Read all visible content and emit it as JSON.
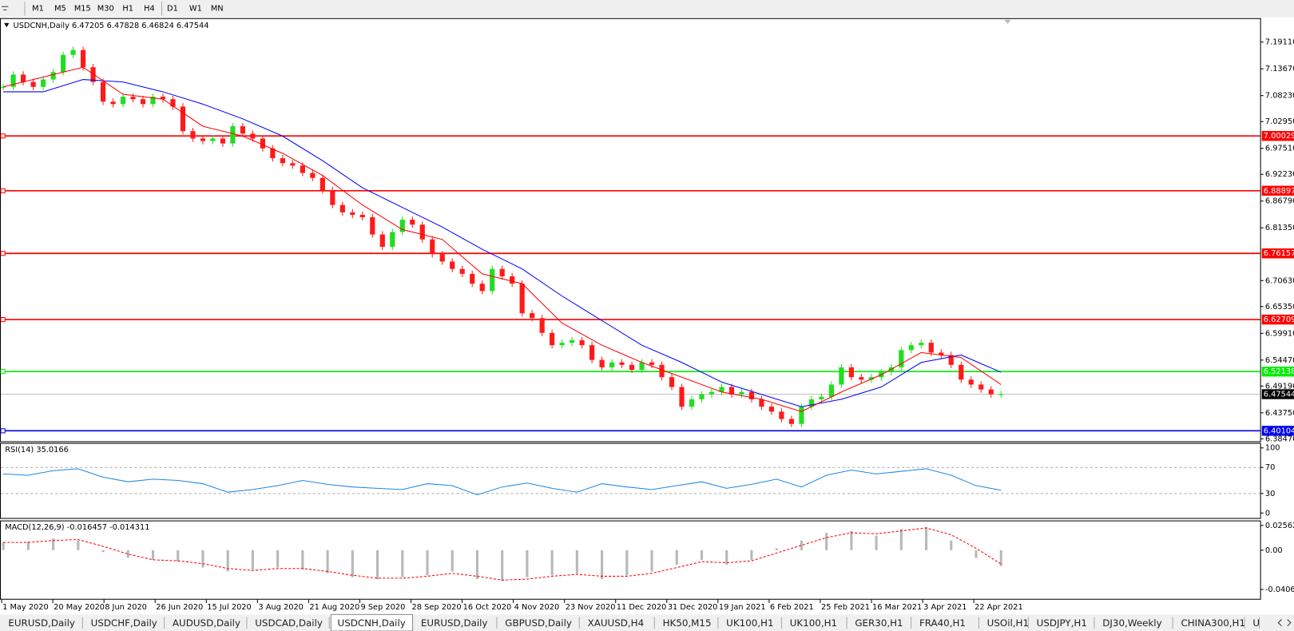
{
  "toolbar": {
    "timeframes": [
      "M1",
      "M5",
      "M15",
      "M30",
      "H1",
      "H4",
      "D1",
      "W1",
      "MN"
    ]
  },
  "chart_data": {
    "type": "candlestick",
    "header": "USDCNH,Daily  6.47205 6.47828 6.46824 6.47544",
    "x_labels": [
      "1 May 2020",
      "20 May 2020",
      "8 Jun 2020",
      "26 Jun 2020",
      "15 Jul 2020",
      "3 Aug 2020",
      "21 Aug 2020",
      "9 Sep 2020",
      "28 Sep 2020",
      "16 Oct 2020",
      "4 Nov 2020",
      "23 Nov 2020",
      "11 Dec 2020",
      "31 Dec 2020",
      "19 Jan 2021",
      "6 Feb 2021",
      "25 Feb 2021",
      "16 Mar 2021",
      "3 Apr 2021",
      "22 Apr 2021"
    ],
    "close": [
      7.1,
      7.125,
      7.11,
      7.1,
      7.115,
      7.13,
      7.165,
      7.175,
      7.14,
      7.11,
      7.07,
      7.065,
      7.08,
      7.075,
      7.065,
      7.08,
      7.075,
      7.06,
      7.01,
      6.995,
      6.99,
      6.995,
      6.985,
      7.02,
      7.005,
      6.995,
      6.975,
      6.955,
      6.945,
      6.94,
      6.925,
      6.915,
      6.89,
      6.86,
      6.845,
      6.84,
      6.835,
      6.8,
      6.775,
      6.805,
      6.83,
      6.82,
      6.79,
      6.76,
      6.745,
      6.73,
      6.72,
      6.7,
      6.685,
      6.73,
      6.715,
      6.7,
      6.64,
      6.63,
      6.6,
      6.575,
      6.58,
      6.585,
      6.575,
      6.545,
      6.53,
      6.54,
      6.535,
      6.525,
      6.54,
      6.535,
      6.51,
      6.49,
      6.45,
      6.465,
      6.475,
      6.48,
      6.49,
      6.475,
      6.48,
      6.465,
      6.45,
      6.44,
      6.425,
      6.415,
      6.45,
      6.465,
      6.47,
      6.495,
      6.53,
      6.51,
      6.505,
      6.51,
      6.52,
      6.53,
      6.565,
      6.575,
      6.58,
      6.56,
      6.555,
      6.535,
      6.505,
      6.495,
      6.485,
      6.475,
      6.47544
    ],
    "up_color": "#22dd22",
    "down_color": "#ff1a1a",
    "ma_fast": {
      "color": "#ff0000",
      "values": [
        7.1,
        7.12,
        7.14,
        7.085,
        7.075,
        7.02,
        7.0,
        6.965,
        6.92,
        6.86,
        6.81,
        6.79,
        6.72,
        6.7,
        6.62,
        6.575,
        6.54,
        6.51,
        6.48,
        6.465,
        6.44,
        6.48,
        6.515,
        6.56,
        6.55,
        6.495
      ]
    },
    "ma_slow": {
      "color": "#0000ff",
      "values": [
        7.09,
        7.09,
        7.115,
        7.11,
        7.09,
        7.065,
        7.035,
        7.0,
        6.95,
        6.895,
        6.855,
        6.815,
        6.77,
        6.73,
        6.675,
        6.625,
        6.575,
        6.54,
        6.5,
        6.475,
        6.45,
        6.465,
        6.49,
        6.54,
        6.555,
        6.52
      ]
    },
    "ylim": [
      6.3797,
      7.2397
    ],
    "yticks": [
      {
        "value": 7.1911,
        "label": "7.19110"
      },
      {
        "value": 7.1367,
        "label": "7.13670"
      },
      {
        "value": 7.0823,
        "label": "7.08230"
      },
      {
        "value": 7.0295,
        "label": "7.02950"
      },
      {
        "value": 6.9751,
        "label": "6.97510"
      },
      {
        "value": 6.9223,
        "label": "6.92230"
      },
      {
        "value": 6.8679,
        "label": "6.86790"
      },
      {
        "value": 6.8135,
        "label": "6.81350"
      },
      {
        "value": 6.7063,
        "label": "6.70630"
      },
      {
        "value": 6.6535,
        "label": "6.65350"
      },
      {
        "value": 6.5991,
        "label": "6.59910"
      },
      {
        "value": 6.5447,
        "label": "6.54470"
      },
      {
        "value": 6.4919,
        "label": "6.49190"
      },
      {
        "value": 6.4375,
        "label": "6.43750"
      },
      {
        "value": 6.3847,
        "label": "6.38470"
      }
    ],
    "levels": [
      {
        "value": 7.00029,
        "color": "#ff0000"
      },
      {
        "value": 6.88897,
        "color": "#ff0000"
      },
      {
        "value": 6.76157,
        "color": "#ff0000"
      },
      {
        "value": 6.62709,
        "color": "#ff0000"
      },
      {
        "value": 6.52138,
        "color": "#00ee00"
      },
      {
        "value": 6.40104,
        "color": "#0000ee"
      }
    ],
    "last_price": 6.47544,
    "rsi": {
      "title": "RSI(14) 35.0166",
      "color": "#1e88e5",
      "values": [
        60,
        58,
        65,
        68,
        55,
        48,
        52,
        50,
        45,
        32,
        36,
        42,
        50,
        44,
        40,
        38,
        36,
        45,
        42,
        28,
        40,
        46,
        38,
        32,
        45,
        40,
        36,
        42,
        48,
        38,
        44,
        52,
        40,
        58,
        66,
        60,
        64,
        68,
        58,
        42,
        35.0166
      ],
      "ylim": [
        -8.9,
        107.6
      ],
      "yticks": [
        100,
        70,
        30,
        0
      ],
      "levels": [
        70,
        30
      ]
    },
    "macd": {
      "title": "MACD(12,26,9) -0.016457 -0.014311",
      "hist_color": "#b8b8b8",
      "signal_color": "#ff0000",
      "main": [
        0.008,
        0.009,
        0.012,
        0.01,
        -0.002,
        -0.008,
        -0.01,
        -0.012,
        -0.018,
        -0.022,
        -0.02,
        -0.018,
        -0.02,
        -0.024,
        -0.028,
        -0.03,
        -0.028,
        -0.026,
        -0.022,
        -0.03,
        -0.032,
        -0.028,
        -0.026,
        -0.024,
        -0.03,
        -0.026,
        -0.022,
        -0.015,
        -0.01,
        -0.015,
        -0.01,
        0.002,
        0.01,
        0.018,
        0.02,
        0.015,
        0.022,
        0.024,
        0.01,
        -0.008,
        -0.016457
      ],
      "signal": [
        0.008,
        0.008,
        0.01,
        0.011,
        0.004,
        -0.004,
        -0.01,
        -0.011,
        -0.014,
        -0.019,
        -0.021,
        -0.019,
        -0.019,
        -0.022,
        -0.026,
        -0.029,
        -0.029,
        -0.027,
        -0.024,
        -0.027,
        -0.031,
        -0.03,
        -0.027,
        -0.025,
        -0.027,
        -0.027,
        -0.024,
        -0.018,
        -0.012,
        -0.013,
        -0.011,
        -0.003,
        0.005,
        0.013,
        0.018,
        0.017,
        0.02,
        0.023,
        0.016,
        0.002,
        -0.014311
      ],
      "ylim": [
        -0.05125,
        0.03075
      ],
      "yticks": [
        0.025623,
        {
          "value": 0,
          "label": "0.00"
        },
        -0.040687
      ]
    }
  },
  "tabs": {
    "items": [
      "EURUSD,Daily",
      "USDCHF,Daily",
      "AUDUSD,Daily",
      "USDCAD,Daily",
      "USDCNH,Daily",
      "EURUSD,Daily",
      "GBPUSD,Daily",
      "XAUUSD,H4",
      "HK50,M15",
      "UK100,H1",
      "UK100,H1",
      "GER30,H1",
      "FRA40,H1",
      "USOil,H1",
      "USDJPY,H1",
      "DJ30,Weekly",
      "CHINA300,H1",
      "U"
    ],
    "active_index": 4
  }
}
